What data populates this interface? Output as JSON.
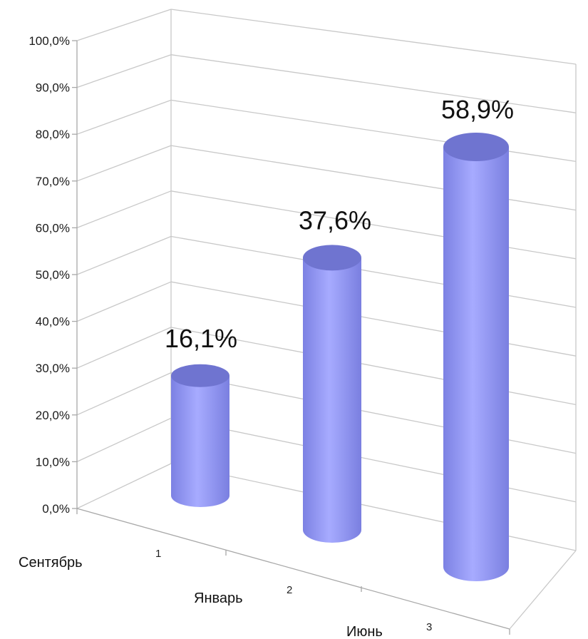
{
  "chart_data": {
    "type": "bar",
    "style": "3d-cylinder",
    "categories": [
      "Сентябрь",
      "Январь",
      "Июнь"
    ],
    "category_index_labels": [
      "1",
      "2",
      "3"
    ],
    "values": [
      16.1,
      37.6,
      58.9
    ],
    "data_labels": [
      "16,1%",
      "37,6%",
      "58,9%"
    ],
    "ylim": [
      0,
      100
    ],
    "yticks": [
      "0,0%",
      "10,0%",
      "20,0%",
      "30,0%",
      "40,0%",
      "50,0%",
      "60,0%",
      "70,0%",
      "80,0%",
      "90,0%",
      "100,0%"
    ],
    "grid": true,
    "legend": "none",
    "title": "",
    "xlabel": "",
    "ylabel": "",
    "colors": {
      "bar": "#8f95f0",
      "bar_top": "#6f74d0",
      "grid": "#c8c8c8",
      "axis": "#a8a8a8"
    }
  }
}
